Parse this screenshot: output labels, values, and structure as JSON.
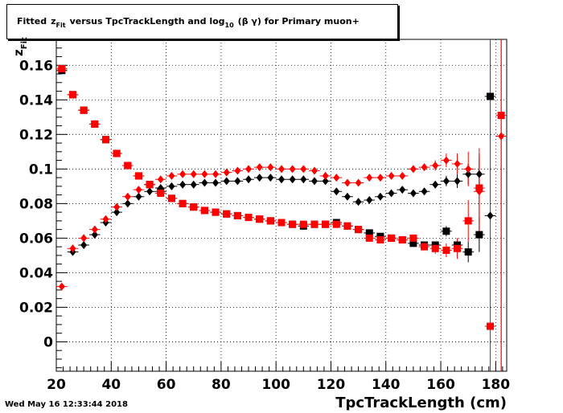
{
  "title": {
    "pre": "Fitted",
    "var": "z",
    "var_sub": "Fit",
    "mid": "versus TpcTrackLength and log",
    "log_sub": "10",
    "post": "(β γ) for Primary muon+"
  },
  "axis": {
    "ylabel_main": "z",
    "ylabel_sub": "Fit",
    "xlabel": "TpcTrackLength (cm)"
  },
  "timestamp": "Wed May 16 12:33:44 2018",
  "colors": {
    "black_series": "#000000",
    "red_series": "#ff0000",
    "grid": "#000000"
  },
  "chart_data": {
    "type": "scatter",
    "xlim": [
      20,
      184
    ],
    "ylim": [
      -0.017,
      0.175
    ],
    "x_ticks": [
      20,
      40,
      60,
      80,
      100,
      120,
      140,
      160,
      180
    ],
    "y_ticks": [
      0,
      0.02,
      0.04,
      0.06,
      0.08,
      0.1,
      0.12,
      0.14,
      0.16
    ],
    "y_tick_labels": [
      "0",
      "0.02",
      "0.04",
      "0.06",
      "0.08",
      "0.1",
      "0.12",
      "0.14",
      "0.16"
    ],
    "x_tick_labels": [
      "20",
      "40",
      "60",
      "80",
      "100",
      "120",
      "140",
      "160",
      "180"
    ],
    "grid": true,
    "series": [
      {
        "color": "black",
        "marker": "square",
        "points": [
          [
            22,
            0.157
          ],
          [
            26,
            0.143
          ],
          [
            30,
            0.134
          ],
          [
            34,
            0.126
          ],
          [
            38,
            0.117
          ],
          [
            42,
            0.109
          ],
          [
            46,
            0.102
          ],
          [
            50,
            0.096
          ],
          [
            54,
            0.091
          ],
          [
            58,
            0.087
          ],
          [
            62,
            0.083
          ],
          [
            66,
            0.08
          ],
          [
            70,
            0.078
          ],
          [
            74,
            0.076
          ],
          [
            78,
            0.075
          ],
          [
            82,
            0.074
          ],
          [
            86,
            0.073
          ],
          [
            90,
            0.072
          ],
          [
            94,
            0.071
          ],
          [
            98,
            0.07
          ],
          [
            102,
            0.069
          ],
          [
            106,
            0.068
          ],
          [
            110,
            0.067
          ],
          [
            114,
            0.068
          ],
          [
            118,
            0.068
          ],
          [
            122,
            0.069
          ],
          [
            126,
            0.067
          ],
          [
            130,
            0.065
          ],
          [
            134,
            0.063
          ],
          [
            138,
            0.061
          ],
          [
            142,
            0.06
          ],
          [
            146,
            0.059
          ],
          [
            150,
            0.057
          ],
          [
            154,
            0.056
          ],
          [
            158,
            0.056
          ],
          [
            162,
            0.064
          ],
          [
            166,
            0.056
          ],
          [
            170,
            0.052
          ],
          [
            174,
            0.062
          ],
          [
            178,
            0.142
          ]
        ],
        "y_err": [
          0,
          0,
          0,
          0,
          0,
          0,
          0,
          0,
          0,
          0,
          0,
          0,
          0,
          0,
          0,
          0,
          0,
          0,
          0,
          0,
          0,
          0,
          0,
          0,
          0,
          0,
          0,
          0,
          0,
          0,
          0,
          0,
          0.001,
          0.001,
          0.002,
          0.003,
          0.004,
          0.006,
          0.01,
          0.07
        ]
      },
      {
        "color": "black",
        "marker": "diamond",
        "points": [
          [
            26,
            0.052
          ],
          [
            30,
            0.056
          ],
          [
            34,
            0.062
          ],
          [
            38,
            0.069
          ],
          [
            42,
            0.075
          ],
          [
            46,
            0.08
          ],
          [
            50,
            0.084
          ],
          [
            54,
            0.087
          ],
          [
            58,
            0.089
          ],
          [
            62,
            0.09
          ],
          [
            66,
            0.091
          ],
          [
            70,
            0.091
          ],
          [
            74,
            0.092
          ],
          [
            78,
            0.092
          ],
          [
            82,
            0.093
          ],
          [
            86,
            0.093
          ],
          [
            90,
            0.094
          ],
          [
            94,
            0.095
          ],
          [
            98,
            0.095
          ],
          [
            102,
            0.094
          ],
          [
            106,
            0.094
          ],
          [
            110,
            0.094
          ],
          [
            114,
            0.093
          ],
          [
            118,
            0.093
          ],
          [
            122,
            0.087
          ],
          [
            126,
            0.084
          ],
          [
            130,
            0.081
          ],
          [
            134,
            0.082
          ],
          [
            138,
            0.084
          ],
          [
            142,
            0.086
          ],
          [
            146,
            0.088
          ],
          [
            150,
            0.086
          ],
          [
            154,
            0.087
          ],
          [
            158,
            0.091
          ],
          [
            162,
            0.093
          ],
          [
            166,
            0.093
          ],
          [
            170,
            0.097
          ],
          [
            174,
            0.097
          ],
          [
            178,
            0.073
          ]
        ],
        "y_err": [
          0,
          0,
          0,
          0,
          0,
          0,
          0,
          0,
          0,
          0,
          0,
          0,
          0,
          0,
          0,
          0,
          0,
          0,
          0,
          0,
          0,
          0,
          0,
          0,
          0,
          0,
          0,
          0,
          0,
          0,
          0.001,
          0.001,
          0.002,
          0.002,
          0.003,
          0.004,
          0.006,
          0.01,
          0.025
        ]
      },
      {
        "color": "red",
        "marker": "square",
        "points": [
          [
            22,
            0.158
          ],
          [
            26,
            0.143
          ],
          [
            30,
            0.134
          ],
          [
            34,
            0.126
          ],
          [
            38,
            0.117
          ],
          [
            42,
            0.109
          ],
          [
            46,
            0.102
          ],
          [
            50,
            0.096
          ],
          [
            54,
            0.091
          ],
          [
            58,
            0.086
          ],
          [
            62,
            0.083
          ],
          [
            66,
            0.08
          ],
          [
            70,
            0.078
          ],
          [
            74,
            0.076
          ],
          [
            78,
            0.075
          ],
          [
            82,
            0.074
          ],
          [
            86,
            0.073
          ],
          [
            90,
            0.072
          ],
          [
            94,
            0.071
          ],
          [
            98,
            0.07
          ],
          [
            102,
            0.069
          ],
          [
            106,
            0.068
          ],
          [
            110,
            0.068
          ],
          [
            114,
            0.068
          ],
          [
            118,
            0.068
          ],
          [
            122,
            0.068
          ],
          [
            126,
            0.067
          ],
          [
            130,
            0.065
          ],
          [
            134,
            0.06
          ],
          [
            138,
            0.059
          ],
          [
            142,
            0.06
          ],
          [
            146,
            0.059
          ],
          [
            150,
            0.06
          ],
          [
            154,
            0.055
          ],
          [
            158,
            0.054
          ],
          [
            162,
            0.053
          ],
          [
            166,
            0.054
          ],
          [
            170,
            0.07
          ],
          [
            174,
            0.089
          ],
          [
            178,
            0.009
          ],
          [
            182,
            0.131
          ]
        ],
        "y_err": [
          0,
          0,
          0,
          0,
          0,
          0,
          0,
          0,
          0,
          0,
          0,
          0,
          0,
          0,
          0,
          0,
          0,
          0,
          0,
          0,
          0,
          0,
          0,
          0,
          0,
          0,
          0,
          0,
          0,
          0,
          0.001,
          0.001,
          0.002,
          0.002,
          0.003,
          0.004,
          0.006,
          0.012,
          0.02,
          0.2,
          0.2
        ]
      },
      {
        "color": "red",
        "marker": "diamond",
        "points": [
          [
            22,
            0.032
          ],
          [
            26,
            0.054
          ],
          [
            30,
            0.06
          ],
          [
            34,
            0.065
          ],
          [
            38,
            0.071
          ],
          [
            42,
            0.078
          ],
          [
            46,
            0.084
          ],
          [
            50,
            0.088
          ],
          [
            54,
            0.091
          ],
          [
            58,
            0.094
          ],
          [
            62,
            0.096
          ],
          [
            66,
            0.097
          ],
          [
            70,
            0.097
          ],
          [
            74,
            0.097
          ],
          [
            78,
            0.097
          ],
          [
            82,
            0.098
          ],
          [
            86,
            0.099
          ],
          [
            90,
            0.1
          ],
          [
            94,
            0.101
          ],
          [
            98,
            0.101
          ],
          [
            102,
            0.1
          ],
          [
            106,
            0.1
          ],
          [
            110,
            0.1
          ],
          [
            114,
            0.099
          ],
          [
            118,
            0.096
          ],
          [
            122,
            0.095
          ],
          [
            126,
            0.092
          ],
          [
            130,
            0.092
          ],
          [
            134,
            0.095
          ],
          [
            138,
            0.095
          ],
          [
            142,
            0.096
          ],
          [
            146,
            0.096
          ],
          [
            150,
            0.1
          ],
          [
            154,
            0.101
          ],
          [
            158,
            0.102
          ],
          [
            162,
            0.105
          ],
          [
            166,
            0.103
          ],
          [
            170,
            0.1
          ],
          [
            174,
            0.087
          ],
          [
            182,
            0.119
          ]
        ],
        "y_err": [
          0,
          0,
          0,
          0,
          0,
          0,
          0,
          0,
          0,
          0,
          0,
          0,
          0,
          0,
          0,
          0,
          0,
          0,
          0,
          0,
          0,
          0,
          0,
          0,
          0,
          0,
          0,
          0,
          0,
          0,
          0,
          0.001,
          0.001,
          0.002,
          0.003,
          0.004,
          0.006,
          0.01,
          0.025,
          0.2
        ]
      }
    ]
  }
}
